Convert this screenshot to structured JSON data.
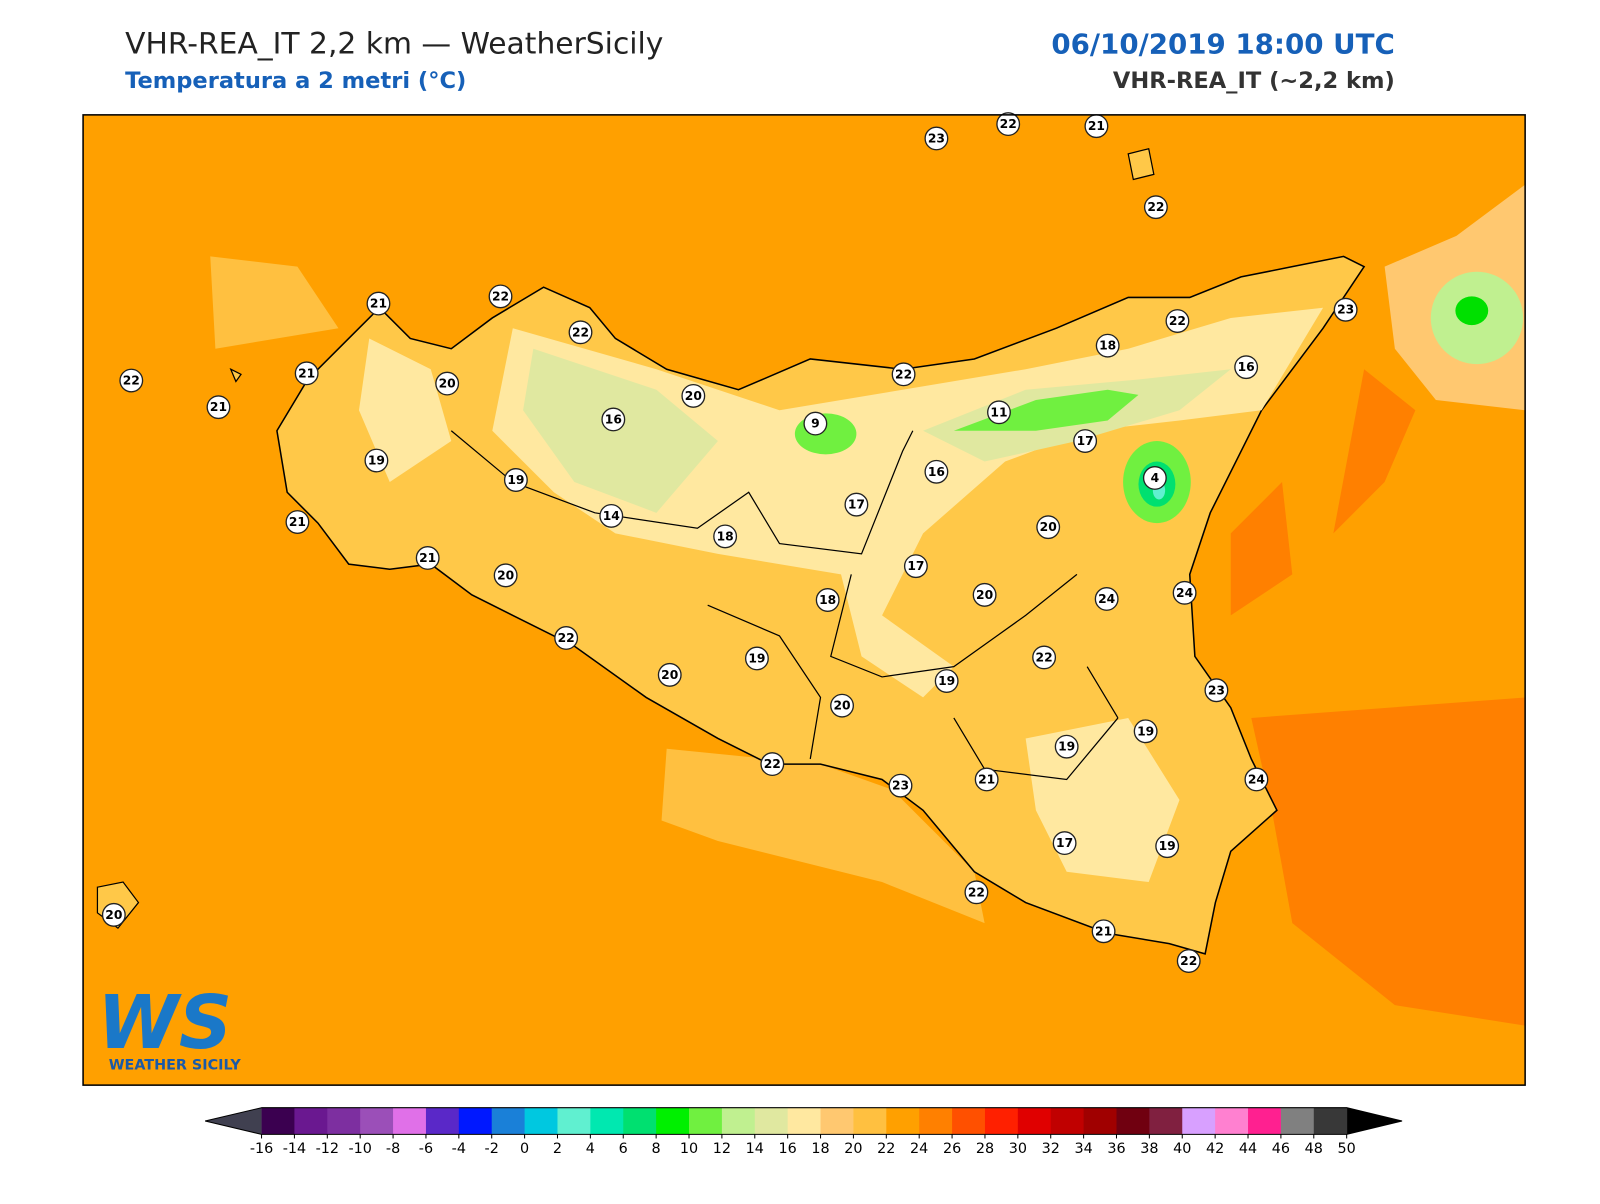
{
  "header": {
    "title": "VHR-REA_IT 2,2 km — WeatherSicily",
    "subtitle": "Temperatura a 2 metri (°C)",
    "date": "06/10/2019 18:00 UTC",
    "model": "VHR-REA_IT (~2,2 km)"
  },
  "logo": {
    "mark": "WS",
    "name": "WEATHER SICILY"
  },
  "stations": [
    23,
    22,
    21,
    22,
    21,
    22,
    22,
    21,
    20,
    22,
    21,
    20,
    16,
    9,
    22,
    18,
    22,
    23,
    16,
    11,
    17,
    4,
    19,
    19,
    16,
    21,
    14,
    17,
    18,
    20,
    21,
    20,
    17,
    20,
    24,
    24,
    18,
    22,
    19,
    22,
    20,
    19,
    23,
    20,
    19,
    19,
    22,
    23,
    21,
    24,
    17,
    19,
    22,
    21,
    22,
    20
  ],
  "colorbar": {
    "ticks": [
      -16,
      -14,
      -12,
      -10,
      -8,
      -6,
      -4,
      -2,
      0,
      2,
      4,
      6,
      8,
      10,
      12,
      14,
      16,
      18,
      20,
      22,
      24,
      26,
      28,
      30,
      32,
      34,
      36,
      38,
      40,
      42,
      44,
      46,
      48,
      50
    ],
    "colors": [
      "#3b0050",
      "#6a1890",
      "#7d2fa0",
      "#9b4fb8",
      "#e070e8",
      "#5a28c8",
      "#0018ff",
      "#1a80d8",
      "#00c8e0",
      "#60f0d0",
      "#00e8b0",
      "#00e070",
      "#00f000",
      "#70f040",
      "#c0f090",
      "#e0e8a0",
      "#ffe8a0",
      "#ffc870",
      "#ffc040",
      "#ffa000",
      "#ff8000",
      "#ff5000",
      "#ff2000",
      "#e00000",
      "#c00000",
      "#a00000",
      "#700010",
      "#802040",
      "#d8a0ff",
      "#ff80d0",
      "#ff2090",
      "#808080",
      "#383838"
    ],
    "under_color": "#404050",
    "over_color": "#000000"
  }
}
